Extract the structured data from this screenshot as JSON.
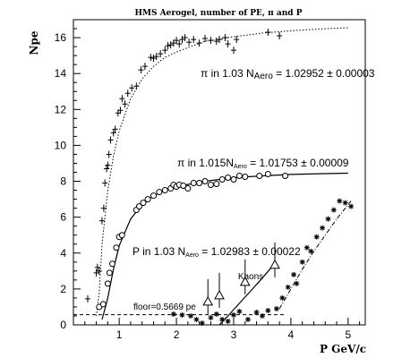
{
  "chart_data": {
    "type": "scatter",
    "title": "HMS Aerogel, number of PE, π and P",
    "xlabel": "P GeV/c",
    "ylabel": "Npe",
    "xlim": [
      0.2,
      5.3
    ],
    "ylim": [
      0,
      17
    ],
    "x_ticks": [
      1,
      2,
      3,
      4,
      5
    ],
    "y_ticks": [
      0,
      2,
      4,
      6,
      8,
      10,
      12,
      14,
      16
    ],
    "grid": false,
    "annotations": {
      "pi103": "π in 1.03  N",
      "pi103_sub": "Aero",
      "pi103_val": " = 1.02952 ± 0.00003",
      "pi1015": "π in 1.015N",
      "pi1015_sub": "Aero",
      "pi1015_val": " = 1.01753 ± 0.00009",
      "p103": "P in 1.03  N",
      "p103_sub": "Aero",
      "p103_val": " = 1.02983 ± 0.00022",
      "kaons": "Kaons",
      "floor": "floor=0.5669 pe"
    },
    "series": [
      {
        "marker": "cross",
        "points": [
          [
            0.45,
            1.45
          ],
          [
            0.6,
            2.9
          ],
          [
            0.62,
            3.2
          ],
          [
            0.65,
            3.0
          ],
          [
            0.7,
            5.8
          ],
          [
            0.73,
            6.5
          ],
          [
            0.75,
            7.9
          ],
          [
            0.78,
            8.7
          ],
          [
            0.8,
            8.9
          ],
          [
            0.82,
            9.5
          ],
          [
            0.85,
            10.3
          ],
          [
            0.9,
            10.7
          ],
          [
            0.93,
            10.9
          ],
          [
            0.98,
            11.8
          ],
          [
            1.02,
            11.95
          ],
          [
            1.05,
            12.6
          ],
          [
            1.1,
            12.3
          ],
          [
            1.15,
            12.9
          ],
          [
            1.22,
            13.2
          ],
          [
            1.3,
            13.3
          ],
          [
            1.38,
            14.2
          ],
          [
            1.45,
            14.4
          ],
          [
            1.55,
            14.9
          ],
          [
            1.6,
            14.85
          ],
          [
            1.65,
            14.95
          ],
          [
            1.72,
            15.1
          ],
          [
            1.8,
            15.3
          ],
          [
            1.85,
            15.55
          ],
          [
            1.9,
            15.6
          ],
          [
            1.95,
            15.7
          ],
          [
            2.0,
            15.85
          ],
          [
            2.05,
            15.65
          ],
          [
            2.1,
            15.9
          ],
          [
            2.15,
            16.0
          ],
          [
            2.22,
            15.75
          ],
          [
            2.3,
            15.9
          ],
          [
            2.4,
            15.7
          ],
          [
            2.5,
            15.95
          ],
          [
            2.6,
            15.85
          ],
          [
            2.7,
            15.8
          ],
          [
            2.75,
            15.9
          ],
          [
            2.85,
            16.0
          ],
          [
            2.9,
            15.65
          ],
          [
            3.0,
            15.3
          ],
          [
            3.05,
            15.9
          ],
          [
            3.6,
            16.3
          ],
          [
            3.8,
            16.1
          ]
        ]
      },
      {
        "marker": "circle",
        "points": [
          [
            0.65,
            1.0
          ],
          [
            0.72,
            1.15
          ],
          [
            0.8,
            2.3
          ],
          [
            0.83,
            2.9
          ],
          [
            0.88,
            3.4
          ],
          [
            0.95,
            4.3
          ],
          [
            1.0,
            4.9
          ],
          [
            1.05,
            5.0
          ],
          [
            1.3,
            6.4
          ],
          [
            1.35,
            6.6
          ],
          [
            1.42,
            6.8
          ],
          [
            1.5,
            7.0
          ],
          [
            1.6,
            7.2
          ],
          [
            1.7,
            7.4
          ],
          [
            1.8,
            7.5
          ],
          [
            1.9,
            7.6
          ],
          [
            1.95,
            7.8
          ],
          [
            2.0,
            7.7
          ],
          [
            2.05,
            7.8
          ],
          [
            2.12,
            7.75
          ],
          [
            2.2,
            7.6
          ],
          [
            2.3,
            7.9
          ],
          [
            2.4,
            7.9
          ],
          [
            2.5,
            8.0
          ],
          [
            2.6,
            7.8
          ],
          [
            2.7,
            7.85
          ],
          [
            2.8,
            8.1
          ],
          [
            2.9,
            8.2
          ],
          [
            3.0,
            8.1
          ],
          [
            3.1,
            8.3
          ],
          [
            3.2,
            8.25
          ],
          [
            3.45,
            8.3
          ],
          [
            3.6,
            8.4
          ],
          [
            3.9,
            8.3
          ]
        ]
      },
      {
        "marker": "triangle",
        "points": [
          [
            2.55,
            1.3
          ],
          [
            2.75,
            1.65
          ],
          [
            3.2,
            2.4
          ],
          [
            3.72,
            3.35
          ]
        ]
      },
      {
        "marker": "asterisk",
        "points": [
          [
            1.95,
            0.6
          ],
          [
            2.1,
            0.55
          ],
          [
            2.25,
            0.5
          ],
          [
            2.35,
            0.3
          ],
          [
            2.45,
            0.1
          ],
          [
            2.6,
            0.4
          ],
          [
            2.7,
            0.6
          ],
          [
            2.8,
            0.3
          ],
          [
            2.9,
            0.2
          ],
          [
            3.0,
            0.55
          ],
          [
            3.1,
            0.75
          ],
          [
            3.25,
            0.3
          ],
          [
            3.4,
            0.7
          ],
          [
            3.5,
            0.5
          ],
          [
            3.6,
            0.8
          ],
          [
            3.75,
            0.9
          ],
          [
            3.85,
            1.5
          ],
          [
            3.95,
            2.1
          ],
          [
            4.05,
            2.8
          ],
          [
            4.1,
            2.3
          ],
          [
            4.2,
            3.5
          ],
          [
            4.28,
            4.3
          ],
          [
            4.35,
            4.1
          ],
          [
            4.45,
            4.9
          ],
          [
            4.55,
            5.4
          ],
          [
            4.65,
            5.9
          ],
          [
            4.75,
            6.4
          ],
          [
            4.85,
            6.9
          ],
          [
            4.95,
            6.8
          ],
          [
            5.05,
            6.6
          ]
        ]
      }
    ],
    "fits": [
      {
        "style": "dotted",
        "points": [
          [
            0.6,
            0.5
          ],
          [
            0.65,
            1.8
          ],
          [
            0.7,
            4.5
          ],
          [
            0.8,
            7.5
          ],
          [
            0.9,
            9.4
          ],
          [
            1.0,
            10.8
          ],
          [
            1.2,
            12.6
          ],
          [
            1.4,
            13.7
          ],
          [
            1.6,
            14.4
          ],
          [
            1.8,
            14.9
          ],
          [
            2.0,
            15.2
          ],
          [
            2.5,
            15.8
          ],
          [
            3.0,
            16.05
          ],
          [
            3.5,
            16.25
          ],
          [
            4.0,
            16.38
          ],
          [
            4.5,
            16.48
          ],
          [
            5.0,
            16.55
          ]
        ]
      },
      {
        "style": "solid",
        "points": [
          [
            0.7,
            0.3
          ],
          [
            0.8,
            1.5
          ],
          [
            0.9,
            3.1
          ],
          [
            1.0,
            4.4
          ],
          [
            1.2,
            5.9
          ],
          [
            1.4,
            6.7
          ],
          [
            1.6,
            7.2
          ],
          [
            1.8,
            7.5
          ],
          [
            2.0,
            7.7
          ],
          [
            2.5,
            8.0
          ],
          [
            3.0,
            8.2
          ],
          [
            3.5,
            8.3
          ],
          [
            4.0,
            8.38
          ],
          [
            4.5,
            8.42
          ],
          [
            5.0,
            8.45
          ]
        ]
      },
      {
        "style": "solid",
        "points": [
          [
            2.75,
            0.0
          ],
          [
            2.9,
            0.5
          ],
          [
            3.1,
            1.2
          ],
          [
            3.3,
            1.9
          ],
          [
            3.5,
            2.6
          ],
          [
            3.7,
            3.35
          ]
        ]
      },
      {
        "style": "dashdot",
        "points": [
          [
            3.8,
            0.9
          ],
          [
            4.0,
            2.0
          ],
          [
            4.2,
            3.1
          ],
          [
            4.4,
            4.1
          ],
          [
            4.6,
            5.0
          ],
          [
            4.8,
            5.9
          ],
          [
            5.05,
            6.9
          ]
        ]
      },
      {
        "style": "dashed",
        "points": [
          [
            0.2,
            0.5669
          ],
          [
            3.9,
            0.5669
          ]
        ]
      }
    ]
  }
}
